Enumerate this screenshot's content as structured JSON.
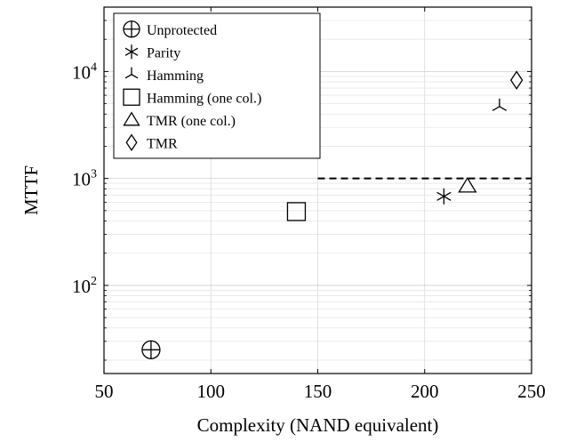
{
  "chart_data": {
    "type": "scatter",
    "xlabel": "Complexity (NAND equivalent)",
    "ylabel": "MTTF",
    "xlim": [
      50,
      250
    ],
    "ylim": [
      15,
      40000
    ],
    "yscale": "log",
    "x_ticks": [
      50,
      100,
      150,
      200,
      250
    ],
    "x_tick_labels": [
      "50",
      "100",
      "150",
      "200",
      "250"
    ],
    "y_ticks": [
      100,
      1000,
      10000
    ],
    "y_tick_labels": [
      {
        "base": "10",
        "exp": "2"
      },
      {
        "base": "10",
        "exp": "3"
      },
      {
        "base": "10",
        "exp": "4"
      }
    ],
    "grid": true,
    "legend_position": "top-left",
    "reference_line": {
      "y": 1000,
      "style": "dashed",
      "x_from": 150,
      "x_to": 250
    },
    "series": [
      {
        "name": "Unprotected",
        "marker": "circle-plus",
        "x": [
          72
        ],
        "y": [
          25
        ]
      },
      {
        "name": "Parity",
        "marker": "asterisk",
        "x": [
          209
        ],
        "y": [
          680
        ]
      },
      {
        "name": "Hamming",
        "marker": "tri-down",
        "x": [
          235
        ],
        "y": [
          4700
        ]
      },
      {
        "name": "Hamming (one col.)",
        "marker": "square",
        "x": [
          140
        ],
        "y": [
          490
        ]
      },
      {
        "name": "TMR (one col.)",
        "marker": "triangle",
        "x": [
          220
        ],
        "y": [
          850
        ]
      },
      {
        "name": "TMR",
        "marker": "diamond",
        "x": [
          243
        ],
        "y": [
          8300
        ]
      }
    ]
  }
}
